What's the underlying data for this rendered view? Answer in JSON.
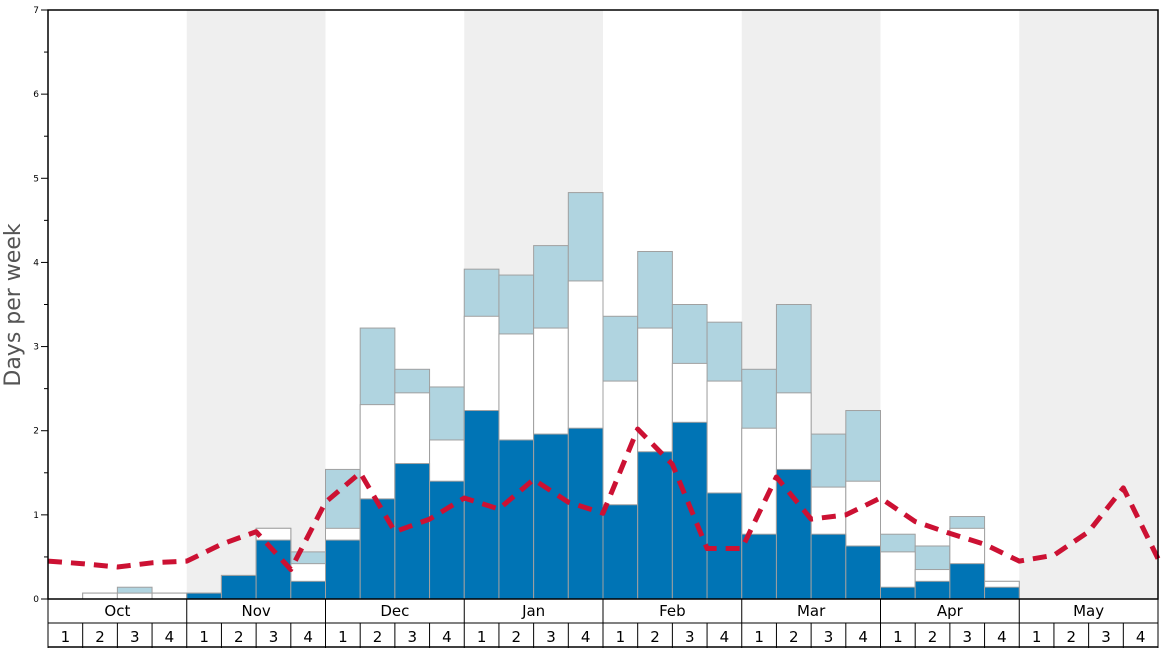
{
  "chart_data": {
    "type": "bar",
    "ylabel": "Days per week",
    "ylim": [
      0,
      7
    ],
    "yticks": [
      0,
      1,
      2,
      3,
      4,
      5,
      6,
      7
    ],
    "months": [
      "Oct",
      "Nov",
      "Dec",
      "Jan",
      "Feb",
      "Mar",
      "Apr",
      "May"
    ],
    "weeks": [
      "1",
      "2",
      "3",
      "4"
    ],
    "shaded_months": [
      "Nov",
      "Jan",
      "Mar",
      "May"
    ],
    "colors": {
      "series_dark": "#0074b5",
      "series_white": "#ffffff",
      "series_light": "#b0d4e0",
      "line": "#cc1133",
      "shade": "#efefef",
      "bar_border": "#a0a0a0"
    },
    "series": [
      {
        "values": [
          0,
          0,
          0,
          0,
          0.07,
          0.28,
          0.7,
          0.21,
          0.7,
          1.19,
          1.61,
          1.4,
          2.24,
          1.89,
          1.96,
          2.03,
          1.12,
          1.75,
          2.1,
          1.26,
          0.77,
          1.54,
          0.77,
          0.63,
          0.14,
          0.21,
          0.42,
          0.14,
          0,
          0,
          0,
          0
        ]
      },
      {
        "values": [
          0,
          0.07,
          0.07,
          0.07,
          0.07,
          0.28,
          0.84,
          0.42,
          0.84,
          2.31,
          2.45,
          1.89,
          3.36,
          3.15,
          3.22,
          3.78,
          2.59,
          3.22,
          2.8,
          2.59,
          2.03,
          2.45,
          1.33,
          1.4,
          0.56,
          0.35,
          0.84,
          0.21,
          0,
          0,
          0,
          0
        ]
      },
      {
        "values": [
          0,
          0.07,
          0.14,
          0.07,
          0.07,
          0.28,
          0.84,
          0.56,
          1.54,
          3.22,
          2.73,
          2.52,
          3.92,
          3.85,
          4.2,
          4.83,
          3.36,
          4.13,
          3.5,
          3.29,
          2.73,
          3.5,
          1.96,
          2.24,
          0.77,
          0.63,
          0.98,
          0.21,
          0,
          0,
          0,
          0
        ]
      },
      {
        "type": "line",
        "values": [
          0.45,
          0.42,
          0.38,
          0.43,
          0.45,
          0.65,
          0.8,
          0.35,
          1.15,
          1.5,
          0.8,
          0.95,
          1.2,
          1.07,
          1.42,
          1.15,
          1.02,
          2.02,
          1.6,
          0.6,
          0.6,
          1.45,
          0.95,
          1.0,
          1.2,
          0.92,
          0.78,
          0.65,
          0.45,
          0.52,
          0.8,
          1.32,
          0.48
        ]
      }
    ]
  }
}
